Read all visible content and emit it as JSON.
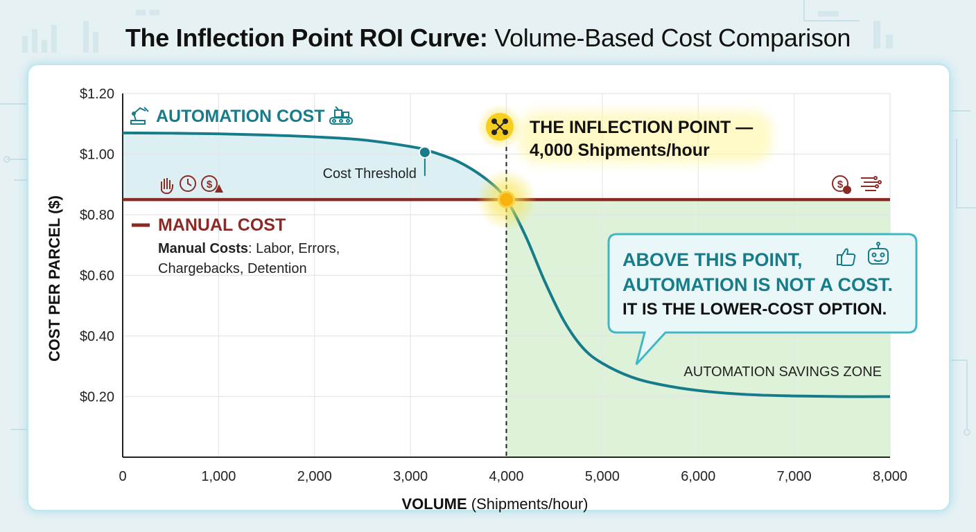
{
  "title": {
    "bold": "The Inflection Point ROI Curve:",
    "regular": "Volume-Based Cost Comparison"
  },
  "colors": {
    "automation": "#177c8a",
    "manual": "#8b2a25",
    "savings_zone": "#ddf2d8",
    "above_manual_fill": "#dcf0f4",
    "highlight": "#f5c518"
  },
  "chart_data": {
    "type": "line",
    "xlabel_bold": "VOLUME",
    "xlabel_rest": "(Shipments/hour)",
    "ylabel": "COST PER PARCEL ($)",
    "x_ticks": [
      0,
      1000,
      2000,
      3000,
      4000,
      5000,
      6000,
      7000,
      8000
    ],
    "x_tick_labels": [
      "0",
      "1,000",
      "2,000",
      "3,000",
      "4,000",
      "5,000",
      "6,000",
      "7,000",
      "8,000"
    ],
    "y_ticks": [
      0.2,
      0.4,
      0.6,
      0.8,
      1.0,
      1.2
    ],
    "y_tick_labels": [
      "$0.20",
      "$0.40",
      "$0.60",
      "$0.80",
      "$1.00",
      "$1.20"
    ],
    "xlim": [
      0,
      8000
    ],
    "ylim": [
      0.0,
      1.2
    ],
    "grid": true,
    "series": [
      {
        "name": "AUTOMATION COST",
        "x": [
          0,
          500,
          1000,
          1500,
          2000,
          2500,
          3000,
          3200,
          3500,
          3800,
          4000,
          4200,
          4400,
          4600,
          4800,
          5000,
          5300,
          5600,
          6000,
          6500,
          7000,
          7500,
          8000
        ],
        "y": [
          1.07,
          1.069,
          1.067,
          1.063,
          1.057,
          1.047,
          1.025,
          1.01,
          0.975,
          0.915,
          0.85,
          0.73,
          0.58,
          0.45,
          0.36,
          0.31,
          0.265,
          0.24,
          0.22,
          0.207,
          0.202,
          0.2,
          0.2
        ]
      },
      {
        "name": "MANUAL COST",
        "x": [
          0,
          8000
        ],
        "y": [
          0.85,
          0.85
        ]
      }
    ],
    "inflection_point": {
      "x": 4000,
      "y": 0.85
    },
    "threshold_point": {
      "x": 3150,
      "y": 1.015
    },
    "annotations": {
      "automation_label": "AUTOMATION COST",
      "manual_label": "MANUAL COST",
      "manual_desc_bold": "Manual Costs",
      "manual_desc_rest_1": ": Labor, Errors,",
      "manual_desc_rest_2": "Chargebacks, Detention",
      "cost_threshold": "Cost Threshold",
      "inflection_line1": "THE INFLECTION POINT —",
      "inflection_line2": "4,000 Shipments/hour",
      "callout_line1": "ABOVE THIS POINT,",
      "callout_line2": "AUTOMATION IS NOT A COST.",
      "callout_line3": "IT IS THE LOWER-COST OPTION.",
      "savings_zone": "AUTOMATION SAVINGS ZONE"
    }
  }
}
